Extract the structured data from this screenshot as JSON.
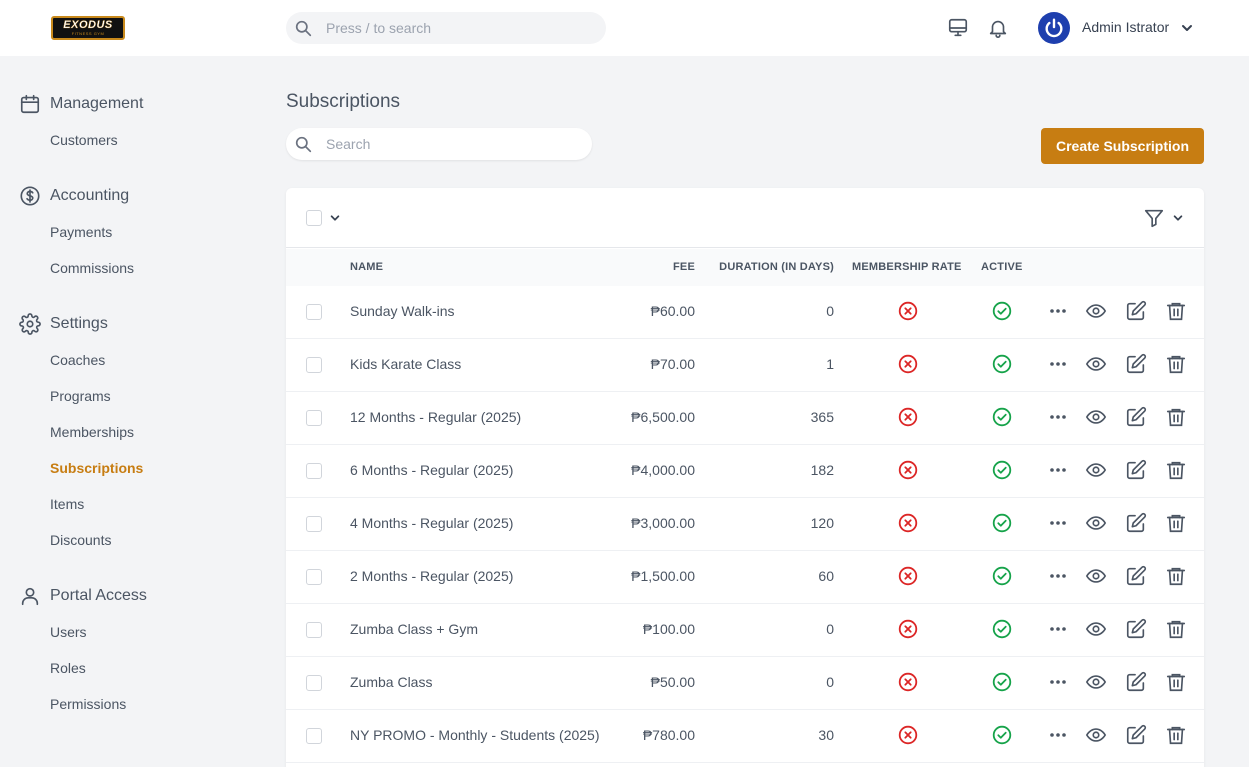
{
  "brand": {
    "logo_text": "EXODUS",
    "logo_subtext": "FITNESS GYM"
  },
  "topbar": {
    "search_placeholder": "Press / to search",
    "user_name": "Admin Istrator"
  },
  "sidebar": {
    "groups": [
      {
        "label": "Management",
        "icon": "calendar-icon",
        "items": [
          {
            "label": "Customers"
          }
        ]
      },
      {
        "label": "Accounting",
        "icon": "dollar-circle-icon",
        "items": [
          {
            "label": "Payments"
          },
          {
            "label": "Commissions"
          }
        ]
      },
      {
        "label": "Settings",
        "icon": "gear-icon",
        "items": [
          {
            "label": "Coaches"
          },
          {
            "label": "Programs"
          },
          {
            "label": "Memberships"
          },
          {
            "label": "Subscriptions",
            "active": true
          },
          {
            "label": "Items"
          },
          {
            "label": "Discounts"
          }
        ]
      },
      {
        "label": "Portal Access",
        "icon": "user-icon",
        "items": [
          {
            "label": "Users"
          },
          {
            "label": "Roles"
          },
          {
            "label": "Permissions"
          }
        ]
      }
    ]
  },
  "page": {
    "title": "Subscriptions",
    "search_placeholder": "Search",
    "create_label": "Create Subscription"
  },
  "colors": {
    "accent": "#c77d12",
    "danger": "#dc2626",
    "success": "#16a34a",
    "avatar": "#1e3fae"
  },
  "table": {
    "columns": {
      "name": "NAME",
      "fee": "FEE",
      "duration": "DURATION (IN DAYS)",
      "membership_rate": "MEMBERSHIP RATE",
      "active": "ACTIVE"
    },
    "rows": [
      {
        "name": "Sunday Walk-ins",
        "fee": "₱60.00",
        "duration": "0",
        "membership_rate": false,
        "active": true
      },
      {
        "name": "Kids Karate Class",
        "fee": "₱70.00",
        "duration": "1",
        "membership_rate": false,
        "active": true
      },
      {
        "name": "12 Months - Regular (2025)",
        "fee": "₱6,500.00",
        "duration": "365",
        "membership_rate": false,
        "active": true
      },
      {
        "name": "6 Months - Regular (2025)",
        "fee": "₱4,000.00",
        "duration": "182",
        "membership_rate": false,
        "active": true
      },
      {
        "name": "4 Months - Regular (2025)",
        "fee": "₱3,000.00",
        "duration": "120",
        "membership_rate": false,
        "active": true
      },
      {
        "name": "2 Months - Regular (2025)",
        "fee": "₱1,500.00",
        "duration": "60",
        "membership_rate": false,
        "active": true
      },
      {
        "name": "Zumba Class + Gym",
        "fee": "₱100.00",
        "duration": "0",
        "membership_rate": false,
        "active": true
      },
      {
        "name": "Zumba Class",
        "fee": "₱50.00",
        "duration": "0",
        "membership_rate": false,
        "active": true
      },
      {
        "name": "NY PROMO - Monthly - Students (2025)",
        "fee": "₱780.00",
        "duration": "30",
        "membership_rate": false,
        "active": true
      }
    ]
  }
}
